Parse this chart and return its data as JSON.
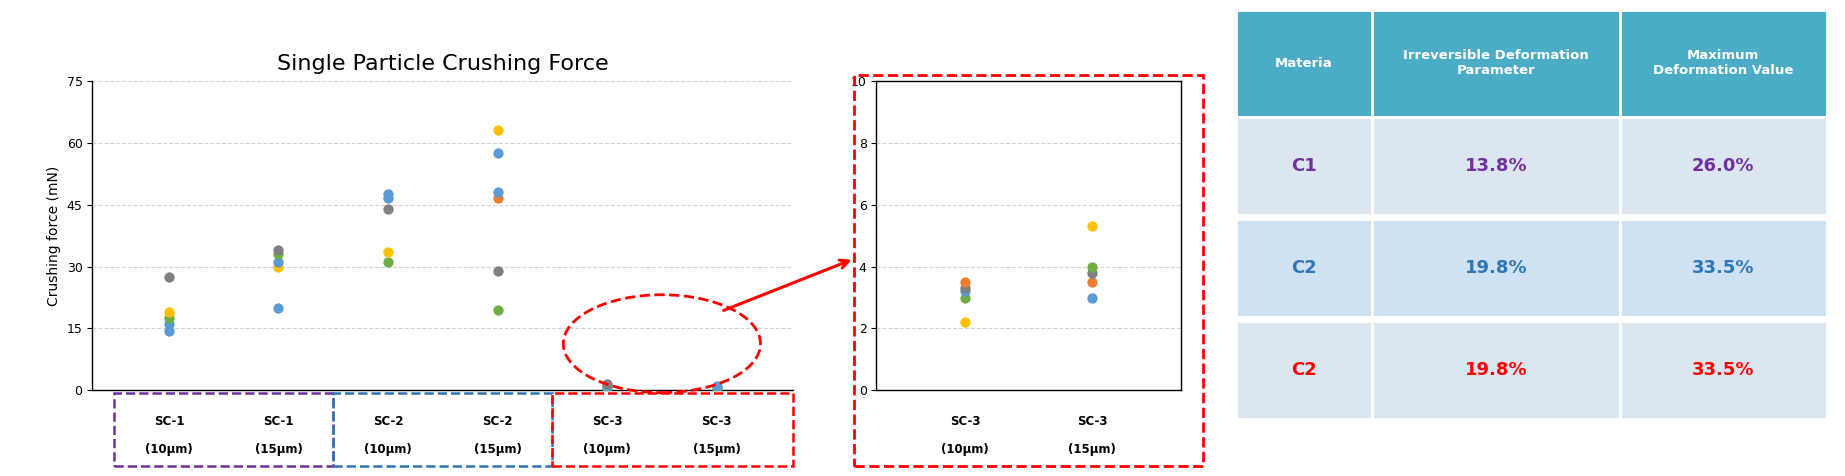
{
  "title": "Single Particle Crushing Force",
  "ylabel": "Crushing force (mN)",
  "title_fontsize": 16,
  "sc1_10um": [
    14.5,
    16.0,
    17.5,
    19.0,
    27.5
  ],
  "sc1_15um": [
    20.0,
    30.0,
    31.0,
    33.0,
    34.0
  ],
  "sc2_10um": [
    31.0,
    33.5,
    44.0,
    46.5,
    47.5
  ],
  "sc2_15um": [
    19.5,
    29.0,
    46.5,
    48.0,
    57.5,
    63.0
  ],
  "sc3_10um_main": [
    0.5,
    1.0,
    1.5
  ],
  "sc3_15um_main": [
    0.5,
    1.0
  ],
  "sc3_10um_zoom": [
    2.2,
    3.0,
    3.2,
    3.3,
    3.5
  ],
  "sc3_15um_zoom": [
    3.0,
    3.5,
    3.8,
    4.0,
    5.3
  ],
  "sc1_10um_colors": [
    "#5b9bd5",
    "#5b9bd5",
    "#70ad47",
    "#ffc000",
    "#808080"
  ],
  "sc1_15um_colors": [
    "#5b9bd5",
    "#ffc000",
    "#5b9bd5",
    "#70ad47",
    "#808080"
  ],
  "sc2_10um_colors": [
    "#70ad47",
    "#ffc000",
    "#808080",
    "#5b9bd5",
    "#5b9bd5"
  ],
  "sc2_15um_colors": [
    "#70ad47",
    "#808080",
    "#ed7d31",
    "#5b9bd5",
    "#5b9bd5",
    "#ffc000"
  ],
  "sc3_10um_main_colors": [
    "#70ad47",
    "#5b9bd5",
    "#808080"
  ],
  "sc3_15um_main_colors": [
    "#70ad47",
    "#5b9bd5"
  ],
  "sc3_10um_zoom_colors": [
    "#ffc000",
    "#70ad47",
    "#5b9bd5",
    "#808080",
    "#ed7d31"
  ],
  "sc3_15um_zoom_colors": [
    "#5b9bd5",
    "#ed7d31",
    "#808080",
    "#70ad47",
    "#ffc000"
  ],
  "main_ylim": [
    0,
    75
  ],
  "main_yticks": [
    0,
    15,
    30,
    45,
    60,
    75
  ],
  "zoom_ylim": [
    0,
    10
  ],
  "zoom_yticks": [
    0,
    2,
    4,
    6,
    8,
    10
  ],
  "box_sc1_color": "#7030a0",
  "box_sc2_color": "#2e75b6",
  "box_sc3_color": "#ff0000",
  "table_header_color": "#4bacc6",
  "table_row_colors": [
    "#dce6f1",
    "#cfe2f3",
    "#dce6f1"
  ],
  "table_header_text_color": "#ffffff",
  "table_col1": "Materia",
  "table_col2": "Irreversible Deformation\nParameter",
  "table_col3": "Maximum\nDeformation Value",
  "table_rows": [
    {
      "material": "C1",
      "param": "13.8%",
      "value": "26.0%",
      "mat_color": "#7030a0",
      "param_color": "#7030a0",
      "value_color": "#7030a0"
    },
    {
      "material": "C2",
      "param": "19.8%",
      "value": "33.5%",
      "mat_color": "#2e75b6",
      "param_color": "#2e75b6",
      "value_color": "#2e75b6"
    },
    {
      "material": "C2",
      "param": "19.8%",
      "value": "33.5%",
      "mat_color": "#ff0000",
      "param_color": "#ff0000",
      "value_color": "#ff0000"
    }
  ]
}
